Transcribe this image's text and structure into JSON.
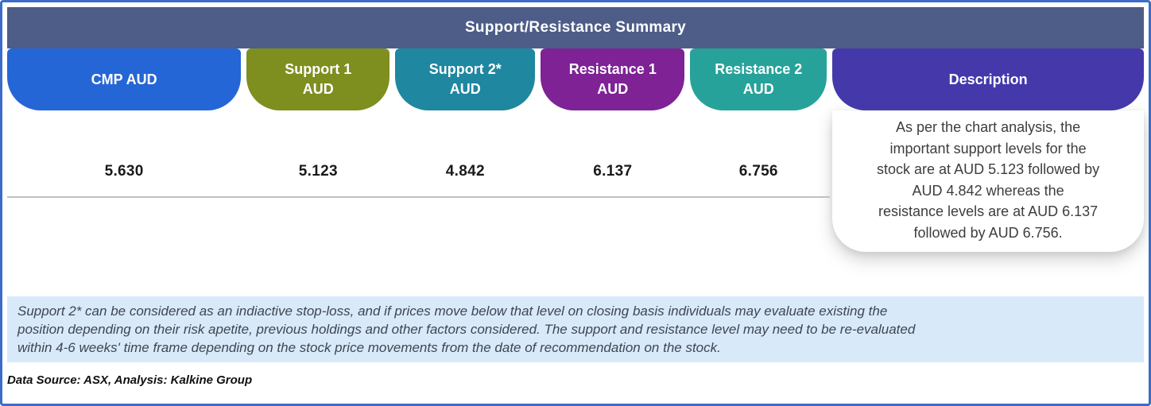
{
  "colors": {
    "frame_border": "#3a6cc8",
    "header_bar": "#4d5d88",
    "note_bg": "#d8eafa",
    "divider": "#c0c0c0"
  },
  "chart_data": {
    "type": "table",
    "title": "Support/Resistance Summary",
    "columns": [
      {
        "header": "CMP AUD",
        "value": "5.630",
        "color": "#2566d6"
      },
      {
        "header": "Support 1\nAUD",
        "value": "5.123",
        "color": "#7e8f20"
      },
      {
        "header": "Support 2*\nAUD",
        "value": "4.842",
        "color": "#1f87a0"
      },
      {
        "header": "Resistance 1\nAUD",
        "value": "6.137",
        "color": "#7e2296"
      },
      {
        "header": "Resistance 2\nAUD",
        "value": "6.756",
        "color": "#27a29a"
      },
      {
        "header": "Description",
        "value": "As per the chart analysis, the\nimportant support levels for the\nstock are at AUD 5.123 followed by\nAUD 4.842 whereas the\nresistance levels are at AUD 6.137\nfollowed by AUD 6.756.",
        "color": "#4438ab"
      }
    ]
  },
  "note": "Support 2* can be considered as an indiactive stop-loss, and if prices move below that level on closing basis individuals may evaluate existing the\nposition depending on their risk apetite, previous holdings and other factors considered. The support and resistance level may need to be re-evaluated\nwithin 4-6 weeks' time frame depending on the stock price movements from  the date of recommendation on the stock.",
  "data_source": "Data Source: ASX, Analysis: Kalkine Group"
}
